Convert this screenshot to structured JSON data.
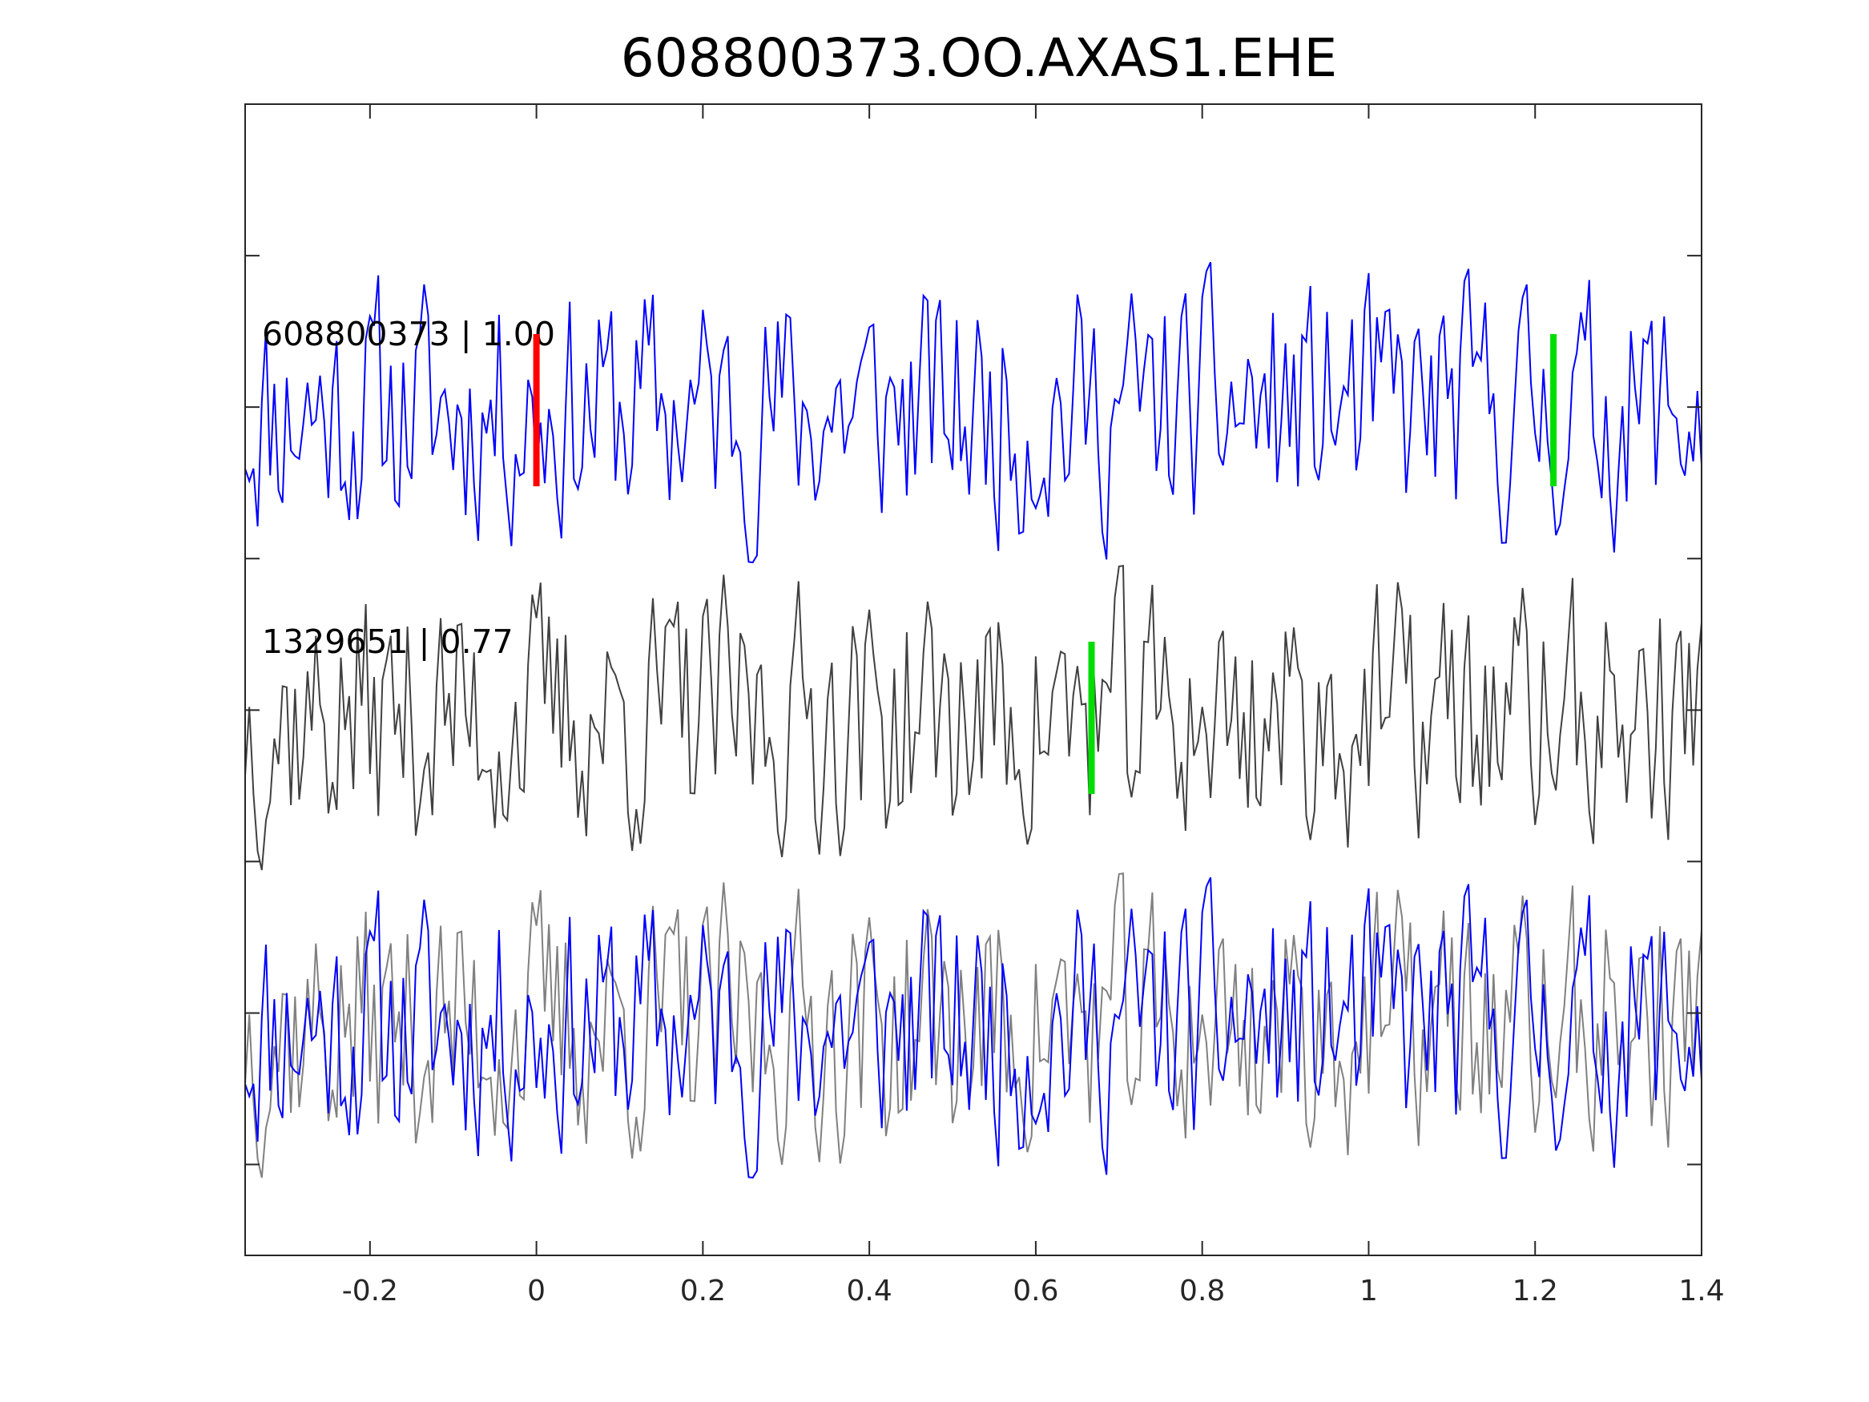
{
  "chart_data": {
    "type": "line",
    "title": "608800373.OO.AXAS1.EHE",
    "xlabel": "",
    "ylabel": "",
    "xlim": [
      -0.35,
      1.4
    ],
    "x_ticks": [
      -0.2,
      0,
      0.2,
      0.4,
      0.6,
      0.8,
      1,
      1.2,
      1.4
    ],
    "x_tick_labels": [
      "-0.2",
      "0",
      "0.2",
      "0.4",
      "0.6",
      "0.8",
      "1",
      "1.2",
      "1.4"
    ],
    "y_tick_count": 7,
    "y_tick_labels_shown": false,
    "grid": false,
    "sample_interval": 0.005,
    "traces": [
      {
        "label": "608800373 | 1.00",
        "color": "#0000ff",
        "row": 1,
        "picks": [
          {
            "x": 0.0,
            "color": "#ff0000"
          },
          {
            "x": 1.222,
            "color": "#00dd00"
          }
        ],
        "seed": 11
      },
      {
        "label": "1329651 | 0.77",
        "color": "#404040",
        "row": 2,
        "picks": [
          {
            "x": 0.667,
            "color": "#00dd00"
          }
        ],
        "seed": 37
      }
    ],
    "overlay": {
      "row": 3,
      "series": [
        {
          "source": 0,
          "color": "#0000ff"
        },
        {
          "source": 1,
          "color": "#808080"
        }
      ]
    },
    "colors": {
      "axis": "#262626",
      "pick_primary": "#ff0000",
      "pick_secondary": "#00dd00"
    }
  }
}
